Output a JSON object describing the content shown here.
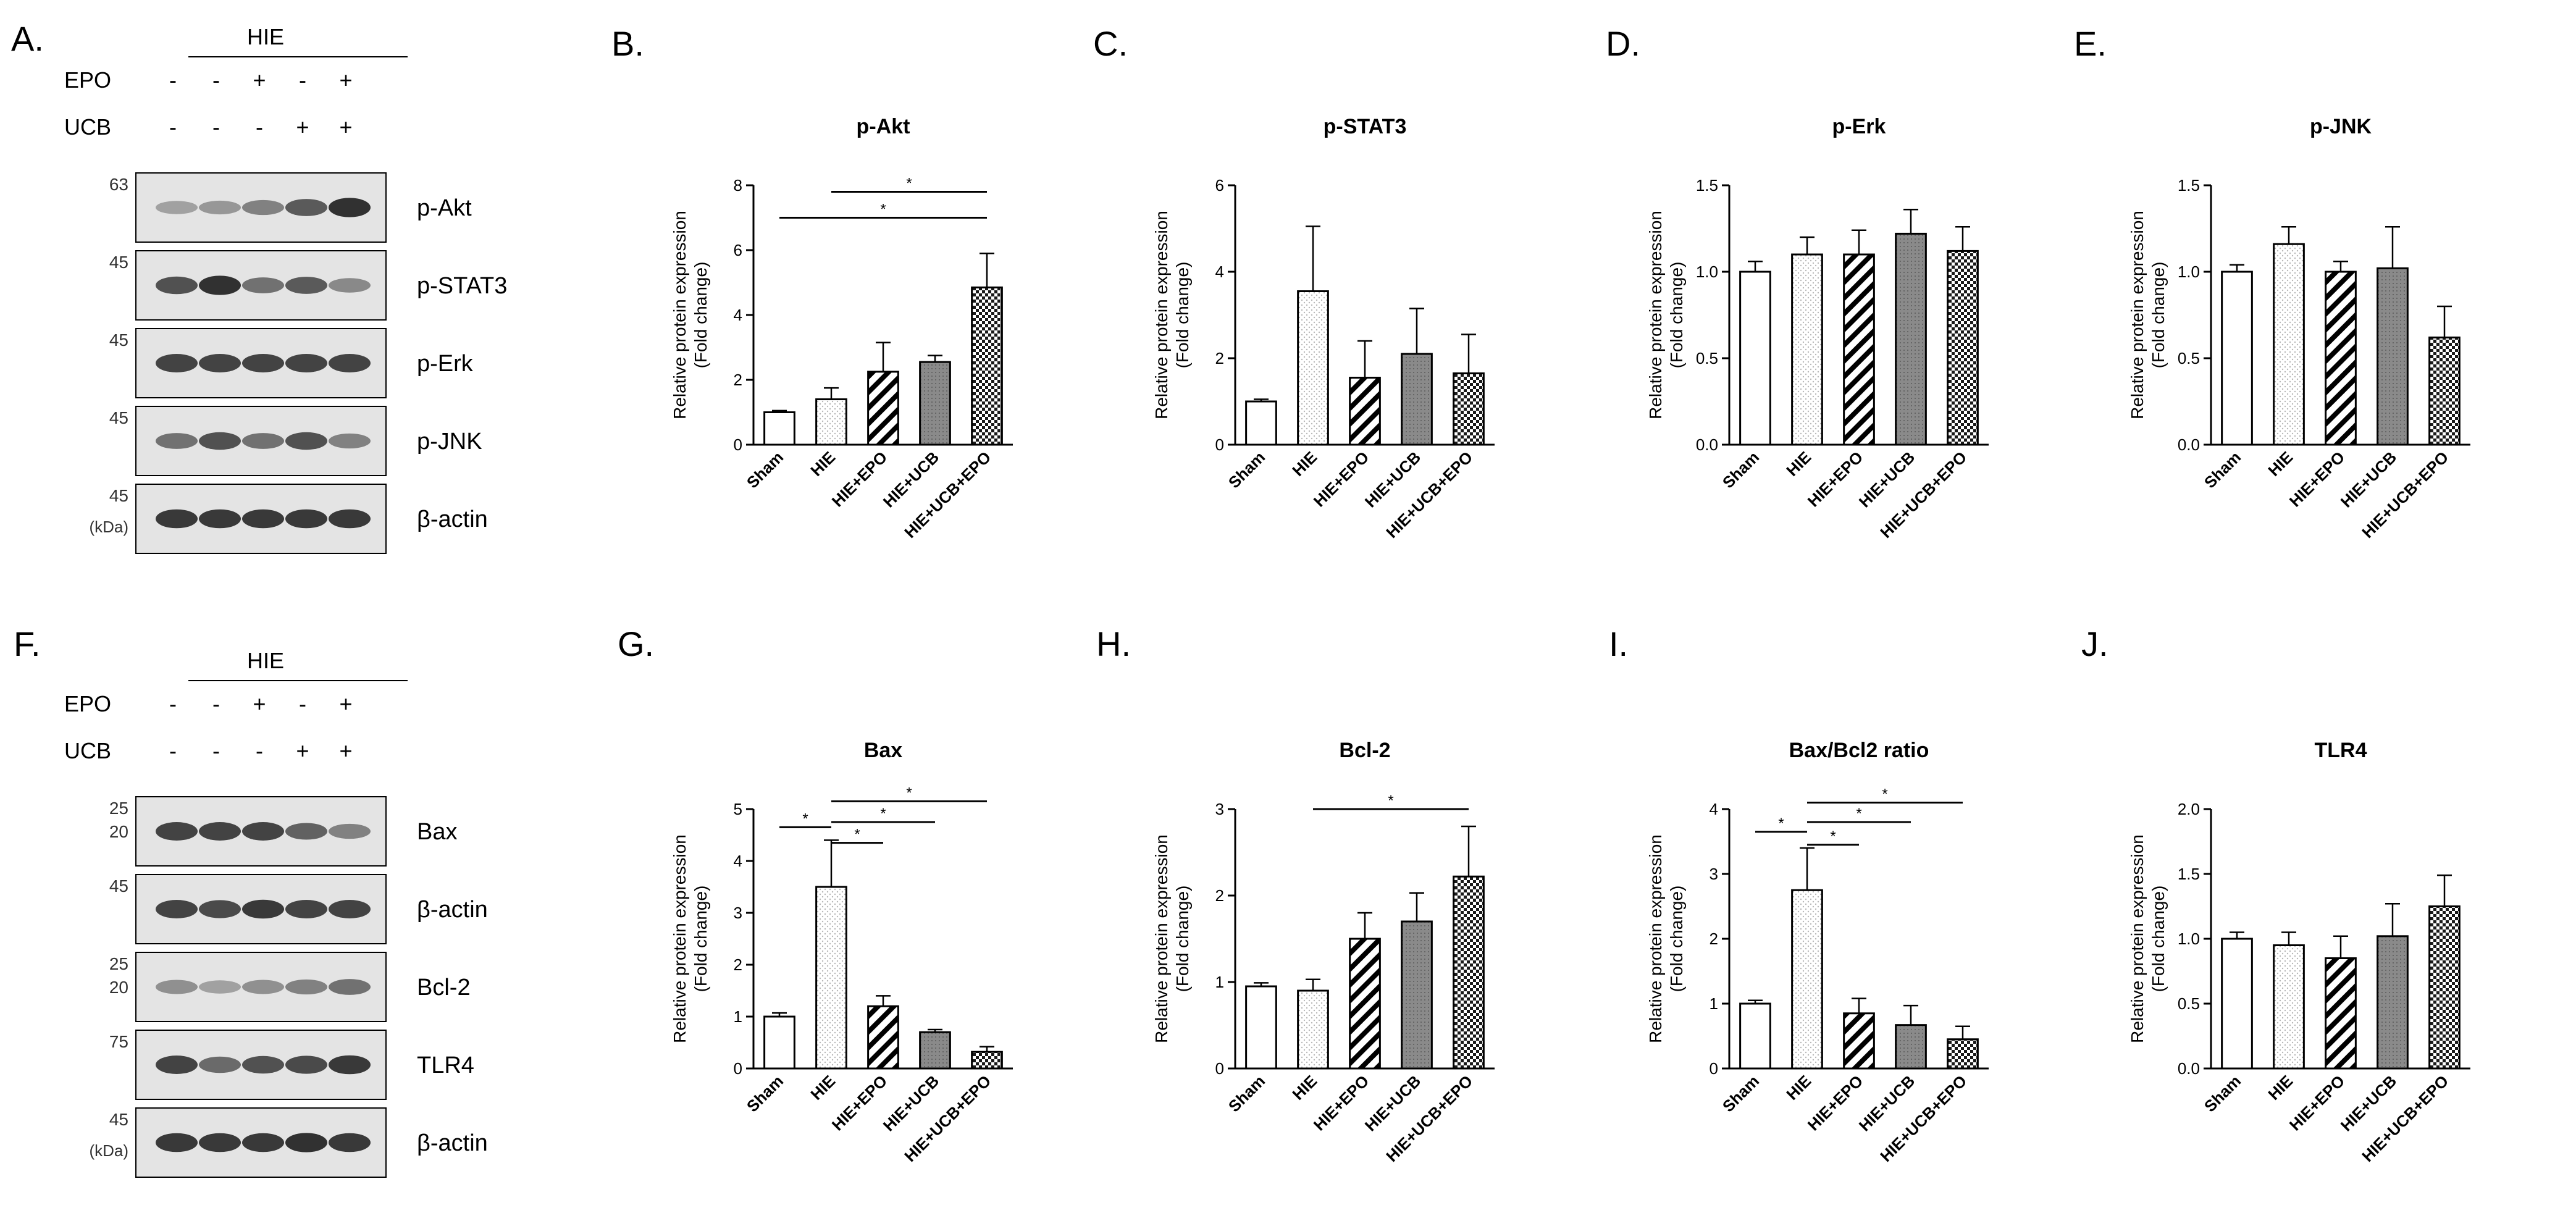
{
  "figure": {
    "panel_letters": [
      "A.",
      "B.",
      "C.",
      "D.",
      "E.",
      "F.",
      "G.",
      "H.",
      "I.",
      "J."
    ]
  },
  "colors": {
    "ink": "#000000",
    "blot_bg": "#e4e4e4",
    "band": "#2a2a2a",
    "bar_stroke": "#000000",
    "hatch": "#000000",
    "bar_fill": "#ffffff",
    "dot_gray": "#b8b8b8",
    "ucb_gray": "#8a8a8a",
    "checker_dark": "#1a1a1a"
  },
  "western_blots": [
    {
      "panel": "A.",
      "group_label": "HIE",
      "row_labels": [
        "EPO",
        "UCB"
      ],
      "rows": [
        [
          "-",
          "-",
          "+",
          "-",
          "+"
        ],
        [
          "-",
          "-",
          "-",
          "+",
          "+"
        ]
      ],
      "blots": [
        {
          "label": "p-Akt",
          "mw": [
            "63"
          ],
          "intensity": [
            0.25,
            0.3,
            0.45,
            0.7,
            0.95
          ]
        },
        {
          "label": "p-STAT3",
          "mw": [
            "45"
          ],
          "intensity": [
            0.75,
            0.95,
            0.55,
            0.7,
            0.4
          ]
        },
        {
          "label": "p-Erk",
          "mw": [
            "45"
          ],
          "intensity": [
            0.85,
            0.85,
            0.85,
            0.85,
            0.85
          ]
        },
        {
          "label": "p-JNK",
          "mw": [
            "45"
          ],
          "intensity": [
            0.55,
            0.75,
            0.55,
            0.75,
            0.45
          ]
        },
        {
          "label": "β-actin",
          "mw": [
            "45",
            "(kDa)"
          ],
          "intensity": [
            0.9,
            0.9,
            0.9,
            0.9,
            0.9
          ]
        }
      ]
    },
    {
      "panel": "F.",
      "group_label": "HIE",
      "row_labels": [
        "EPO",
        "UCB"
      ],
      "rows": [
        [
          "-",
          "-",
          "+",
          "-",
          "+"
        ],
        [
          "-",
          "-",
          "-",
          "+",
          "+"
        ]
      ],
      "blots": [
        {
          "label": "Bax",
          "mw": [
            "25",
            "20"
          ],
          "intensity": [
            0.85,
            0.85,
            0.85,
            0.65,
            0.45
          ]
        },
        {
          "label": "β-actin",
          "mw": [
            "45"
          ],
          "intensity": [
            0.85,
            0.8,
            0.9,
            0.85,
            0.85
          ]
        },
        {
          "label": "Bcl-2",
          "mw": [
            "25",
            "20"
          ],
          "intensity": [
            0.35,
            0.25,
            0.35,
            0.45,
            0.55
          ]
        },
        {
          "label": "TLR4",
          "mw": [
            "75"
          ],
          "intensity": [
            0.85,
            0.6,
            0.75,
            0.8,
            0.9
          ]
        },
        {
          "label": "β-actin",
          "mw": [
            "45",
            "(kDa)"
          ],
          "intensity": [
            0.9,
            0.9,
            0.9,
            0.95,
            0.9
          ]
        }
      ]
    }
  ],
  "chart_data": [
    {
      "panel": "B.",
      "type": "bar",
      "title": "p-Akt",
      "ylabel": [
        "Relative protein expression",
        "(Fold change)"
      ],
      "categories": [
        "Sham",
        "HIE",
        "HIE+EPO",
        "HIE+UCB",
        "HIE+UCB+EPO"
      ],
      "values": [
        1.0,
        1.4,
        2.25,
        2.55,
        4.85
      ],
      "errors": [
        0.05,
        0.35,
        0.9,
        0.2,
        1.05
      ],
      "ylim": [
        0,
        8
      ],
      "yticks": [
        "0",
        "2",
        "4",
        "6",
        "8"
      ],
      "sig": [
        {
          "from": 0,
          "to": 4,
          "y": 7.0,
          "label": "*"
        },
        {
          "from": 1,
          "to": 4,
          "y": 7.8,
          "label": "*"
        }
      ]
    },
    {
      "panel": "C.",
      "type": "bar",
      "title": "p-STAT3",
      "ylabel": [
        "Relative protein expression",
        "(Fold change)"
      ],
      "categories": [
        "Sham",
        "HIE",
        "HIE+EPO",
        "HIE+UCB",
        "HIE+UCB+EPO"
      ],
      "values": [
        1.0,
        3.55,
        1.55,
        2.1,
        1.65
      ],
      "errors": [
        0.05,
        1.5,
        0.85,
        1.05,
        0.9
      ],
      "ylim": [
        0,
        6
      ],
      "yticks": [
        "0",
        "2",
        "4",
        "6"
      ],
      "sig": []
    },
    {
      "panel": "D.",
      "type": "bar",
      "title": "p-Erk",
      "ylabel": [
        "Relative protein expression",
        "(Fold change)"
      ],
      "categories": [
        "Sham",
        "HIE",
        "HIE+EPO",
        "HIE+UCB",
        "HIE+UCB+EPO"
      ],
      "values": [
        1.0,
        1.1,
        1.1,
        1.22,
        1.12
      ],
      "errors": [
        0.06,
        0.1,
        0.14,
        0.14,
        0.14
      ],
      "ylim": [
        0,
        1.5
      ],
      "yticks": [
        "0.0",
        "0.5",
        "1.0",
        "1.5"
      ],
      "sig": []
    },
    {
      "panel": "E.",
      "type": "bar",
      "title": "p-JNK",
      "ylabel": [
        "Relative protein expression",
        "(Fold change)"
      ],
      "categories": [
        "Sham",
        "HIE",
        "HIE+EPO",
        "HIE+UCB",
        "HIE+UCB+EPO"
      ],
      "values": [
        1.0,
        1.16,
        1.0,
        1.02,
        0.62
      ],
      "errors": [
        0.04,
        0.1,
        0.06,
        0.24,
        0.18
      ],
      "ylim": [
        0,
        1.5
      ],
      "yticks": [
        "0.0",
        "0.5",
        "1.0",
        "1.5"
      ],
      "sig": []
    },
    {
      "panel": "G.",
      "type": "bar",
      "title": "Bax",
      "ylabel": [
        "Relative protein expression",
        "(Fold change)"
      ],
      "categories": [
        "Sham",
        "HIE",
        "HIE+EPO",
        "HIE+UCB",
        "HIE+UCB+EPO"
      ],
      "values": [
        1.0,
        3.5,
        1.2,
        0.7,
        0.32
      ],
      "errors": [
        0.07,
        0.9,
        0.2,
        0.05,
        0.1
      ],
      "ylim": [
        0,
        5
      ],
      "yticks": [
        "0",
        "1",
        "2",
        "3",
        "4",
        "5"
      ],
      "sig": [
        {
          "from": 0,
          "to": 1,
          "y": 4.65,
          "label": "*"
        },
        {
          "from": 1,
          "to": 2,
          "y": 4.35,
          "label": "*"
        },
        {
          "from": 1,
          "to": 3,
          "y": 4.75,
          "label": "*"
        },
        {
          "from": 1,
          "to": 4,
          "y": 5.15,
          "label": "*"
        }
      ]
    },
    {
      "panel": "H.",
      "type": "bar",
      "title": "Bcl-2",
      "ylabel": [
        "Relative protein expression",
        "(Fold change)"
      ],
      "categories": [
        "Sham",
        "HIE",
        "HIE+EPO",
        "HIE+UCB",
        "HIE+UCB+EPO"
      ],
      "values": [
        0.95,
        0.9,
        1.5,
        1.7,
        2.22
      ],
      "errors": [
        0.04,
        0.13,
        0.3,
        0.33,
        0.58
      ],
      "ylim": [
        0,
        3
      ],
      "yticks": [
        "0",
        "1",
        "2",
        "3"
      ],
      "sig": [
        {
          "from": 1,
          "to": 4,
          "y": 3.0,
          "label": "*"
        }
      ]
    },
    {
      "panel": "I.",
      "type": "bar",
      "title": "Bax/Bcl2 ratio",
      "ylabel": [
        "Relative protein expression",
        "(Fold change)"
      ],
      "categories": [
        "Sham",
        "HIE",
        "HIE+EPO",
        "HIE+UCB",
        "HIE+UCB+EPO"
      ],
      "values": [
        1.0,
        2.75,
        0.85,
        0.67,
        0.45
      ],
      "errors": [
        0.05,
        0.65,
        0.23,
        0.3,
        0.2
      ],
      "ylim": [
        0,
        4
      ],
      "yticks": [
        "0",
        "1",
        "2",
        "3",
        "4"
      ],
      "sig": [
        {
          "from": 0,
          "to": 1,
          "y": 3.65,
          "label": "*"
        },
        {
          "from": 1,
          "to": 2,
          "y": 3.45,
          "label": "*"
        },
        {
          "from": 1,
          "to": 3,
          "y": 3.8,
          "label": "*"
        },
        {
          "from": 1,
          "to": 4,
          "y": 4.1,
          "label": "*"
        }
      ]
    },
    {
      "panel": "J.",
      "type": "bar",
      "title": "TLR4",
      "ylabel": [
        "Relative protein expression",
        "(Fold change)"
      ],
      "categories": [
        "Sham",
        "HIE",
        "HIE+EPO",
        "HIE+UCB",
        "HIE+UCB+EPO"
      ],
      "values": [
        1.0,
        0.95,
        0.85,
        1.02,
        1.25
      ],
      "errors": [
        0.05,
        0.1,
        0.17,
        0.25,
        0.24
      ],
      "ylim": [
        0,
        2
      ],
      "yticks": [
        "0.0",
        "0.5",
        "1.0",
        "1.5",
        "2.0"
      ],
      "sig": []
    }
  ]
}
